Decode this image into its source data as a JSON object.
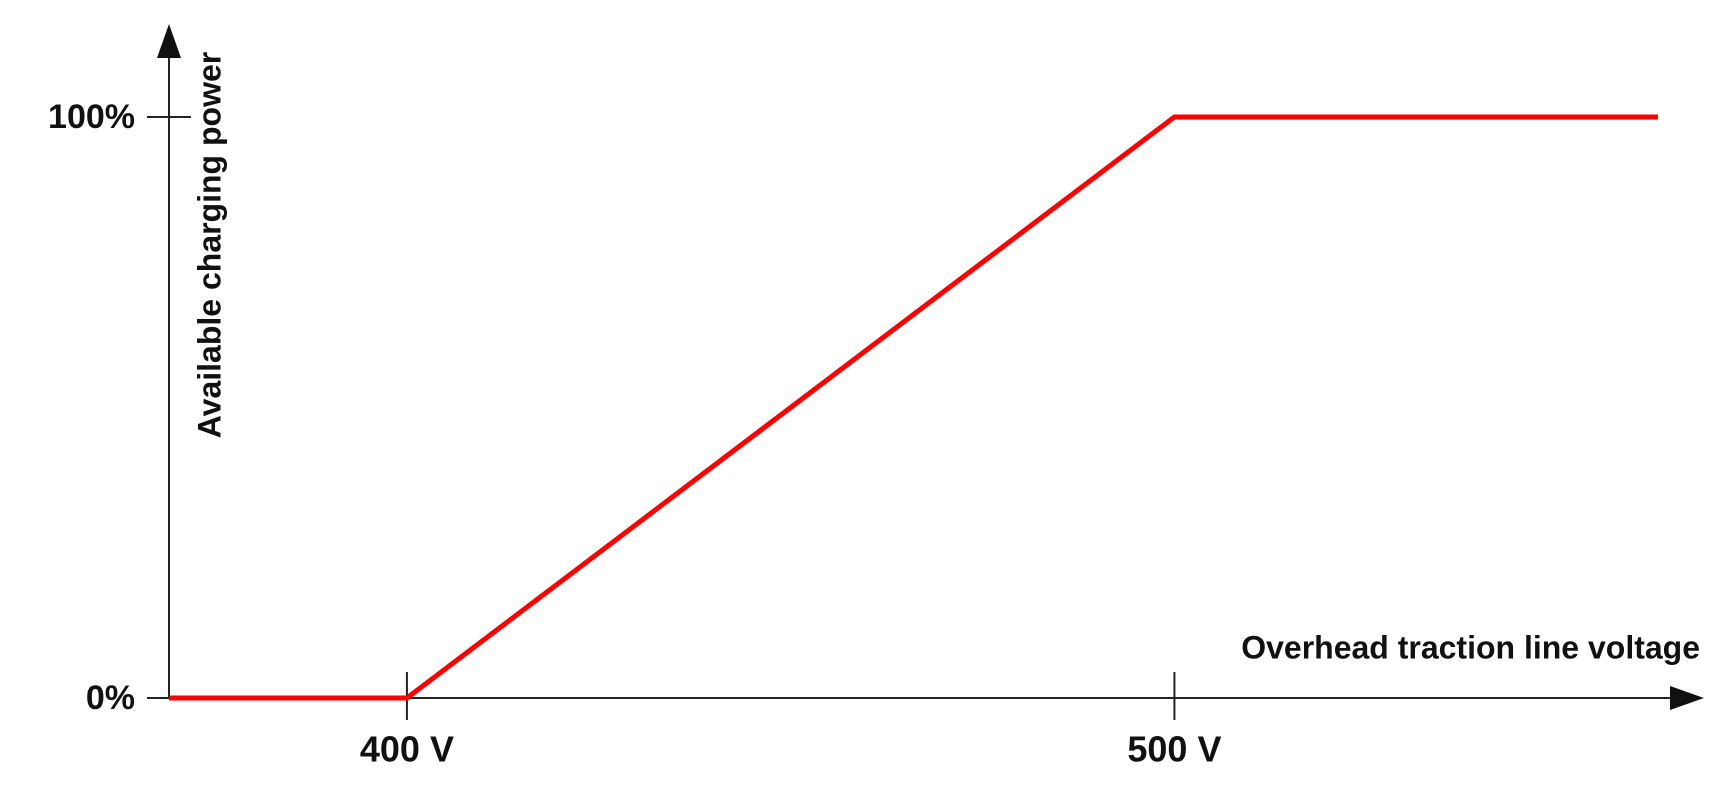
{
  "chart_data": {
    "type": "line",
    "x_label": "Overhead traction line voltage",
    "y_label": "Available charging power",
    "x": [
      369,
      400,
      500,
      563
    ],
    "series": [
      {
        "name": null,
        "color": "#ff0000",
        "values": [
          0,
          0,
          100,
          100
        ]
      }
    ],
    "xlim": [
      369,
      569
    ],
    "ylim": [
      0,
      116
    ],
    "xticks": [
      {
        "value": 400,
        "label": "400 V"
      },
      {
        "value": 500,
        "label": "500 V"
      }
    ],
    "yticks": [
      {
        "value": 0,
        "label": "0%"
      },
      {
        "value": 100,
        "label": "100%"
      }
    ],
    "grid": false
  }
}
